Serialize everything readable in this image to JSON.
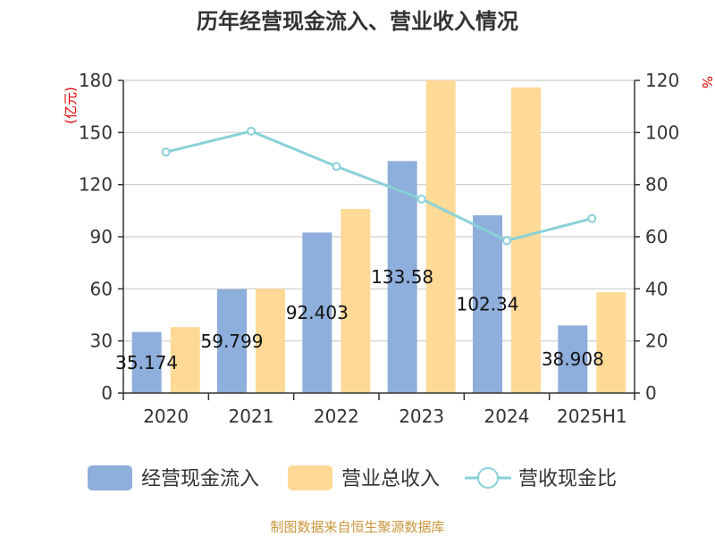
{
  "chart_data": {
    "type": "bar",
    "title": "历年经营现金流入、营业收入情况",
    "left_unit": "(亿元)",
    "right_unit": "%",
    "categories": [
      "2020",
      "2021",
      "2022",
      "2023",
      "2024",
      "2025H1"
    ],
    "series": [
      {
        "name": "经营现金流入",
        "kind": "bar",
        "axis": "left",
        "color": "#8eaedb",
        "values": [
          35.174,
          59.799,
          92.403,
          133.58,
          102.34,
          38.908
        ],
        "labels": [
          "35.174",
          "59.799",
          "92.403",
          "133.58",
          "102.34",
          "38.908"
        ]
      },
      {
        "name": "营业总收入",
        "kind": "bar",
        "axis": "left",
        "color": "#ffd996",
        "values": [
          38,
          60,
          106,
          180,
          176,
          58
        ]
      },
      {
        "name": "营收现金比",
        "kind": "line",
        "axis": "right",
        "color": "#88d1d8",
        "values": [
          92.5,
          100.5,
          87,
          74.5,
          58.5,
          67
        ]
      }
    ],
    "y_left": {
      "min": 0,
      "max": 180,
      "ticks": [
        0,
        30,
        60,
        90,
        120,
        150,
        180
      ]
    },
    "y_right": {
      "min": 0,
      "max": 120,
      "ticks": [
        0,
        20,
        40,
        60,
        80,
        100,
        120
      ]
    },
    "grid": true,
    "legend_position": "bottom"
  },
  "source_text": "制图数据来自恒生聚源数据库"
}
